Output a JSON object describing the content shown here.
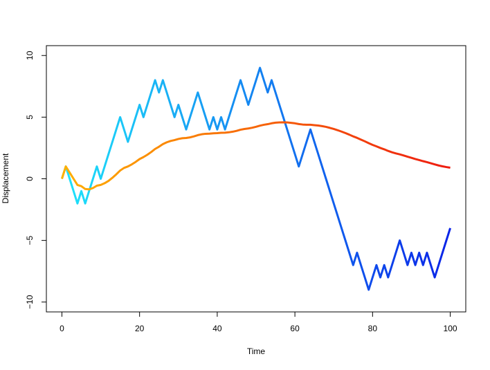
{
  "chart_data": {
    "type": "line",
    "xlabel": "Time",
    "ylabel": "Displacement",
    "xlim": [
      -4,
      104
    ],
    "ylim": [
      -10.8,
      10.8
    ],
    "xticks": [
      0,
      20,
      40,
      60,
      80,
      100
    ],
    "yticks": [
      {
        "value": -10,
        "label": "−10"
      },
      {
        "value": -5,
        "label": "−5"
      },
      0,
      5,
      10
    ],
    "grid": false,
    "x": [
      0,
      1,
      2,
      3,
      4,
      5,
      6,
      7,
      8,
      9,
      10,
      11,
      12,
      13,
      14,
      15,
      16,
      17,
      18,
      19,
      20,
      21,
      22,
      23,
      24,
      25,
      26,
      27,
      28,
      29,
      30,
      31,
      32,
      33,
      34,
      35,
      36,
      37,
      38,
      39,
      40,
      41,
      42,
      43,
      44,
      45,
      46,
      47,
      48,
      49,
      50,
      51,
      52,
      53,
      54,
      55,
      56,
      57,
      58,
      59,
      60,
      61,
      62,
      63,
      64,
      65,
      66,
      67,
      68,
      69,
      70,
      71,
      72,
      73,
      74,
      75,
      76,
      77,
      78,
      79,
      80,
      81,
      82,
      83,
      84,
      85,
      86,
      87,
      88,
      89,
      90,
      91,
      92,
      93,
      94,
      95,
      96,
      97,
      98,
      99,
      100
    ],
    "series": [
      {
        "color": [
          "#1ee4fa",
          "#0a24e8"
        ],
        "values": [
          0,
          1,
          0,
          -1,
          -2,
          -1,
          -2,
          -1,
          0,
          1,
          0,
          1,
          2,
          3,
          4,
          5,
          4,
          3,
          4,
          5,
          6,
          5,
          6,
          7,
          8,
          7,
          8,
          7,
          6,
          5,
          6,
          5,
          4,
          5,
          6,
          7,
          6,
          5,
          4,
          5,
          4,
          5,
          4,
          5,
          6,
          7,
          8,
          7,
          6,
          7,
          8,
          9,
          8,
          7,
          8,
          7,
          6,
          5,
          4,
          3,
          2,
          1,
          2,
          3,
          4,
          3,
          2,
          1,
          0,
          -1,
          -2,
          -3,
          -4,
          -5,
          -6,
          -7,
          -6,
          -7,
          -8,
          -9,
          -8,
          -7,
          -8,
          -7,
          -8,
          -7,
          -6,
          -5,
          -6,
          -7,
          -6,
          -7,
          -6,
          -7,
          -6,
          -7,
          -8,
          -7,
          -6,
          -5,
          -4
        ]
      },
      {
        "color": [
          "#ffb000",
          "#ee1c10"
        ],
        "values": [
          0,
          1,
          0.5,
          0,
          -0.5,
          -0.6,
          -0.83,
          -0.86,
          -0.75,
          -0.56,
          -0.5,
          -0.36,
          -0.17,
          0.08,
          0.36,
          0.67,
          0.88,
          1,
          1.17,
          1.37,
          1.6,
          1.76,
          1.95,
          2.17,
          2.42,
          2.6,
          2.81,
          2.96,
          3.07,
          3.14,
          3.23,
          3.29,
          3.31,
          3.36,
          3.44,
          3.54,
          3.61,
          3.65,
          3.66,
          3.69,
          3.7,
          3.73,
          3.74,
          3.77,
          3.82,
          3.89,
          3.98,
          4.04,
          4.08,
          4.14,
          4.22,
          4.31,
          4.38,
          4.43,
          4.5,
          4.55,
          4.57,
          4.58,
          4.57,
          4.54,
          4.5,
          4.44,
          4.4,
          4.38,
          4.38,
          4.35,
          4.32,
          4.27,
          4.21,
          4.13,
          4.04,
          3.94,
          3.83,
          3.71,
          3.58,
          3.44,
          3.32,
          3.18,
          3.04,
          2.89,
          2.75,
          2.63,
          2.5,
          2.39,
          2.26,
          2.15,
          2.06,
          1.98,
          1.89,
          1.79,
          1.7,
          1.6,
          1.52,
          1.43,
          1.35,
          1.26,
          1.17,
          1.08,
          1.01,
          0.95,
          0.9
        ]
      }
    ]
  }
}
